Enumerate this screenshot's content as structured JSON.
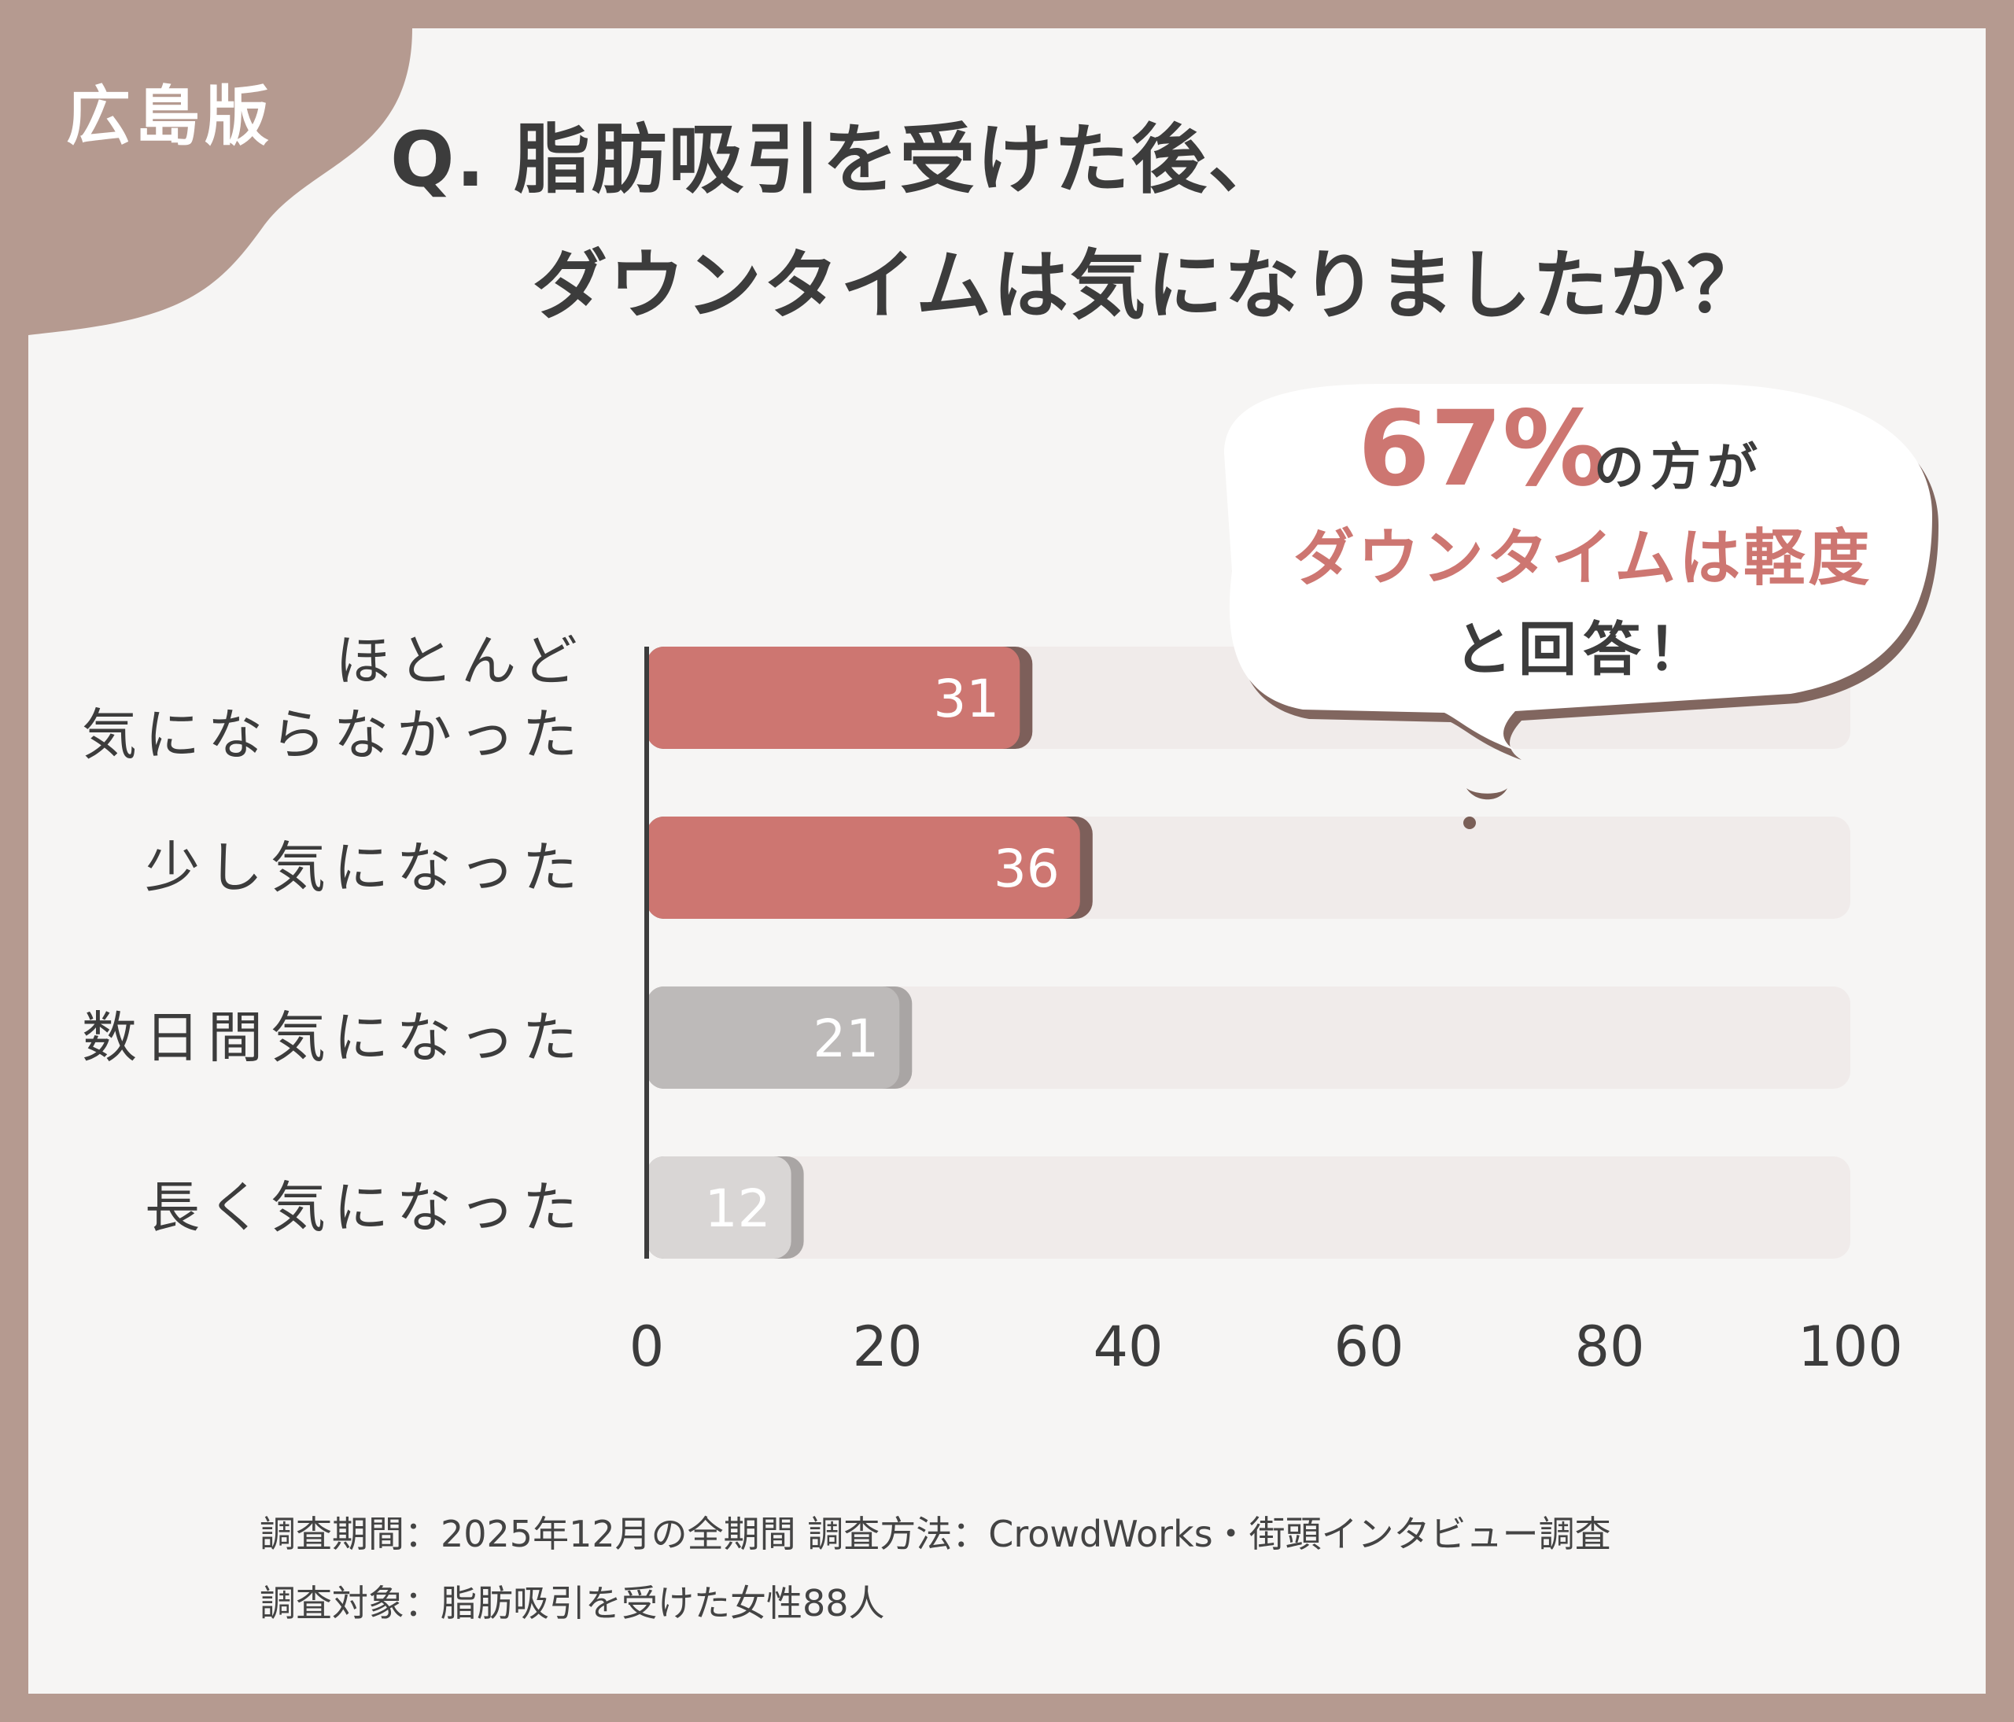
{
  "badge": "広島版",
  "question": {
    "line1": "Q. 脂肪吸引を受けた後、",
    "line2": "ダウンタイムは気になりましたか？"
  },
  "callout": {
    "percent": "67%",
    "suffix": "の方が",
    "highlight": "ダウンタイムは軽度",
    "tail": "と回答！"
  },
  "chart_data": {
    "type": "bar",
    "orientation": "horizontal",
    "categories": [
      "ほとんど気にならなかった",
      "少し気になった",
      "数日間気になった",
      "長く気になった"
    ],
    "category_lines": [
      [
        "ほとんど",
        "気にならなかった"
      ],
      [
        "少し気になった"
      ],
      [
        "数日間気になった"
      ],
      [
        "長く気になった"
      ]
    ],
    "values": [
      31,
      36,
      21,
      12
    ],
    "value_labels": [
      "31",
      "36",
      "21",
      "12"
    ],
    "xlim": [
      0,
      100
    ],
    "xticks": [
      "0",
      "20",
      "40",
      "60",
      "80",
      "100"
    ],
    "bar_colors": [
      "#cd7671",
      "#cd7671",
      "#bdbab9",
      "#d9d6d5"
    ],
    "track_color": "#f0ebea",
    "grid": false
  },
  "footer": {
    "line1": "調査期間：2025年12月の全期間  調査方法：CrowdWorks・街頭インタビュー調査",
    "line2": "調査対象：脂肪吸引を受けた女性88人"
  },
  "colors": {
    "frame": "#b59a90",
    "accent": "#cd7671",
    "text": "#3c3c3c"
  }
}
